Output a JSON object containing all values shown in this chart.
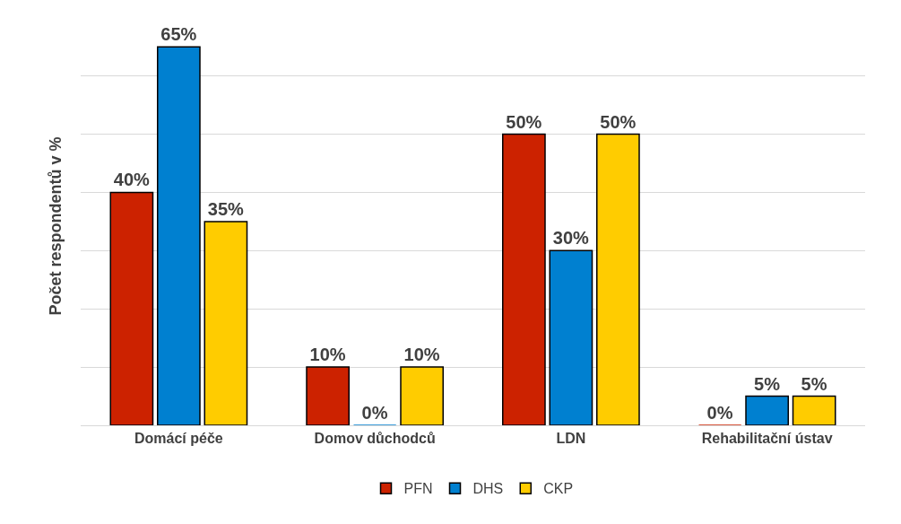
{
  "chart_data": {
    "type": "bar",
    "ylabel": "Počet respondentů v %",
    "categories": [
      "Domácí péče",
      "Domov důchodců",
      "LDN",
      "Rehabilitační ústav"
    ],
    "series": [
      {
        "name": "PFN",
        "color": "#cc2200",
        "values": [
          40,
          10,
          50,
          0
        ],
        "value_labels": [
          "40%",
          "10%",
          "50%",
          "0%"
        ]
      },
      {
        "name": "DHS",
        "color": "#0080d0",
        "values": [
          65,
          0,
          30,
          5
        ],
        "value_labels": [
          "65%",
          "0%",
          "30%",
          "5%"
        ]
      },
      {
        "name": "CKP",
        "color": "#ffcc00",
        "values": [
          35,
          10,
          50,
          5
        ],
        "value_labels": [
          "35%",
          "10%",
          "50%",
          "5%"
        ]
      }
    ],
    "tick_labels": "x",
    "grid": "y",
    "legend": "bottom"
  }
}
